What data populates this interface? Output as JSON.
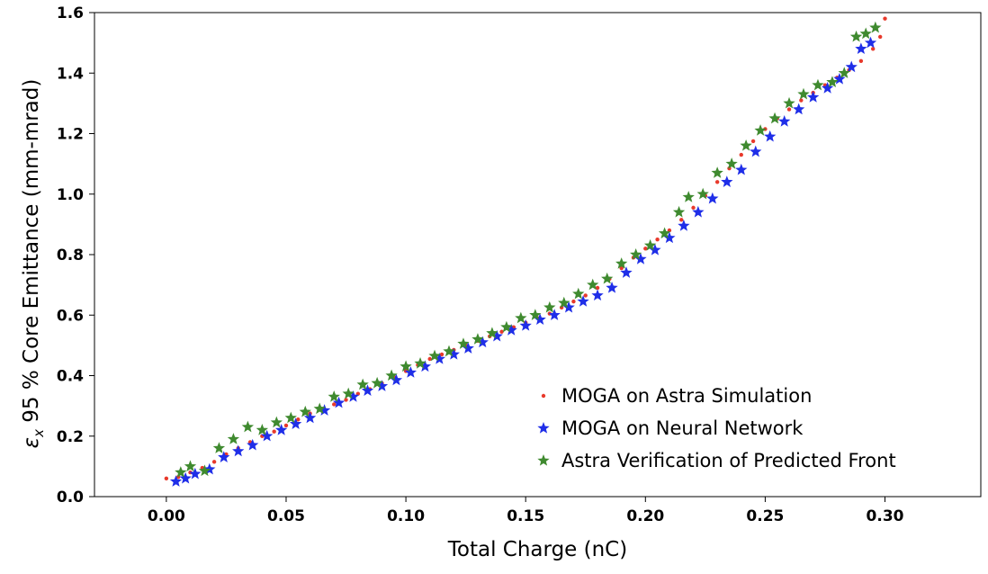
{
  "chart_data": {
    "type": "scatter",
    "title": "",
    "xlabel": "Total Charge (nC)",
    "ylabel_symbol": "ε",
    "ylabel_subscript": "x",
    "ylabel_rest": " 95 % Core Emittance (mm-mrad)",
    "xlim": [
      -0.03,
      0.34
    ],
    "ylim": [
      0.0,
      1.6
    ],
    "x_ticks": [
      0.0,
      0.05,
      0.1,
      0.15,
      0.2,
      0.25,
      0.3
    ],
    "x_tick_labels": [
      "0.00",
      "0.05",
      "0.10",
      "0.15",
      "0.20",
      "0.25",
      "0.30"
    ],
    "y_ticks": [
      0.0,
      0.2,
      0.4,
      0.6,
      0.8,
      1.0,
      1.2,
      1.4,
      1.6
    ],
    "y_tick_labels": [
      "0.0",
      "0.2",
      "0.4",
      "0.6",
      "0.8",
      "1.0",
      "1.2",
      "1.4",
      "1.6"
    ],
    "grid": false,
    "legend_position": "lower-right",
    "series": [
      {
        "name": "MOGA on Astra Simulation",
        "marker": "dot",
        "color": "#e8392b",
        "points": [
          [
            0.0,
            0.06
          ],
          [
            0.005,
            0.065
          ],
          [
            0.01,
            0.08
          ],
          [
            0.015,
            0.095
          ],
          [
            0.02,
            0.115
          ],
          [
            0.025,
            0.14
          ],
          [
            0.03,
            0.16
          ],
          [
            0.035,
            0.18
          ],
          [
            0.04,
            0.2
          ],
          [
            0.045,
            0.215
          ],
          [
            0.05,
            0.235
          ],
          [
            0.055,
            0.255
          ],
          [
            0.06,
            0.275
          ],
          [
            0.065,
            0.29
          ],
          [
            0.07,
            0.305
          ],
          [
            0.075,
            0.32
          ],
          [
            0.08,
            0.34
          ],
          [
            0.085,
            0.355
          ],
          [
            0.09,
            0.375
          ],
          [
            0.095,
            0.395
          ],
          [
            0.1,
            0.415
          ],
          [
            0.105,
            0.435
          ],
          [
            0.11,
            0.455
          ],
          [
            0.115,
            0.47
          ],
          [
            0.12,
            0.485
          ],
          [
            0.125,
            0.5
          ],
          [
            0.13,
            0.515
          ],
          [
            0.135,
            0.53
          ],
          [
            0.14,
            0.545
          ],
          [
            0.145,
            0.56
          ],
          [
            0.15,
            0.575
          ],
          [
            0.155,
            0.59
          ],
          [
            0.16,
            0.605
          ],
          [
            0.165,
            0.625
          ],
          [
            0.17,
            0.645
          ],
          [
            0.175,
            0.665
          ],
          [
            0.18,
            0.69
          ],
          [
            0.185,
            0.72
          ],
          [
            0.19,
            0.755
          ],
          [
            0.195,
            0.79
          ],
          [
            0.2,
            0.82
          ],
          [
            0.205,
            0.85
          ],
          [
            0.21,
            0.88
          ],
          [
            0.215,
            0.915
          ],
          [
            0.22,
            0.955
          ],
          [
            0.225,
            0.995
          ],
          [
            0.23,
            1.04
          ],
          [
            0.235,
            1.085
          ],
          [
            0.24,
            1.13
          ],
          [
            0.245,
            1.175
          ],
          [
            0.25,
            1.215
          ],
          [
            0.255,
            1.25
          ],
          [
            0.26,
            1.28
          ],
          [
            0.265,
            1.31
          ],
          [
            0.27,
            1.335
          ],
          [
            0.275,
            1.36
          ],
          [
            0.28,
            1.385
          ],
          [
            0.285,
            1.41
          ],
          [
            0.29,
            1.44
          ],
          [
            0.295,
            1.48
          ],
          [
            0.298,
            1.52
          ],
          [
            0.3,
            1.58
          ]
        ]
      },
      {
        "name": "MOGA on Neural Network",
        "marker": "star",
        "color": "#1f2ee8",
        "points": [
          [
            0.004,
            0.05
          ],
          [
            0.008,
            0.06
          ],
          [
            0.012,
            0.075
          ],
          [
            0.018,
            0.09
          ],
          [
            0.024,
            0.13
          ],
          [
            0.03,
            0.15
          ],
          [
            0.036,
            0.17
          ],
          [
            0.042,
            0.2
          ],
          [
            0.048,
            0.22
          ],
          [
            0.054,
            0.24
          ],
          [
            0.06,
            0.26
          ],
          [
            0.066,
            0.285
          ],
          [
            0.072,
            0.31
          ],
          [
            0.078,
            0.33
          ],
          [
            0.084,
            0.35
          ],
          [
            0.09,
            0.365
          ],
          [
            0.096,
            0.385
          ],
          [
            0.102,
            0.41
          ],
          [
            0.108,
            0.43
          ],
          [
            0.114,
            0.455
          ],
          [
            0.12,
            0.47
          ],
          [
            0.126,
            0.49
          ],
          [
            0.132,
            0.51
          ],
          [
            0.138,
            0.53
          ],
          [
            0.144,
            0.55
          ],
          [
            0.15,
            0.565
          ],
          [
            0.156,
            0.585
          ],
          [
            0.162,
            0.6
          ],
          [
            0.168,
            0.625
          ],
          [
            0.174,
            0.645
          ],
          [
            0.18,
            0.665
          ],
          [
            0.186,
            0.69
          ],
          [
            0.192,
            0.74
          ],
          [
            0.198,
            0.785
          ],
          [
            0.204,
            0.815
          ],
          [
            0.21,
            0.855
          ],
          [
            0.216,
            0.895
          ],
          [
            0.222,
            0.94
          ],
          [
            0.228,
            0.985
          ],
          [
            0.234,
            1.04
          ],
          [
            0.24,
            1.08
          ],
          [
            0.246,
            1.14
          ],
          [
            0.252,
            1.19
          ],
          [
            0.258,
            1.24
          ],
          [
            0.264,
            1.28
          ],
          [
            0.27,
            1.32
          ],
          [
            0.276,
            1.35
          ],
          [
            0.281,
            1.38
          ],
          [
            0.286,
            1.42
          ],
          [
            0.29,
            1.48
          ],
          [
            0.294,
            1.5
          ]
        ]
      },
      {
        "name": "Astra Verification of Predicted Front",
        "marker": "star",
        "color": "#3f8a2f",
        "points": [
          [
            0.006,
            0.08
          ],
          [
            0.01,
            0.1
          ],
          [
            0.016,
            0.085
          ],
          [
            0.022,
            0.16
          ],
          [
            0.028,
            0.19
          ],
          [
            0.034,
            0.23
          ],
          [
            0.04,
            0.22
          ],
          [
            0.046,
            0.245
          ],
          [
            0.052,
            0.26
          ],
          [
            0.058,
            0.28
          ],
          [
            0.064,
            0.29
          ],
          [
            0.07,
            0.33
          ],
          [
            0.076,
            0.34
          ],
          [
            0.082,
            0.37
          ],
          [
            0.088,
            0.375
          ],
          [
            0.094,
            0.4
          ],
          [
            0.1,
            0.43
          ],
          [
            0.106,
            0.44
          ],
          [
            0.112,
            0.465
          ],
          [
            0.118,
            0.48
          ],
          [
            0.124,
            0.505
          ],
          [
            0.13,
            0.52
          ],
          [
            0.136,
            0.54
          ],
          [
            0.142,
            0.56
          ],
          [
            0.148,
            0.59
          ],
          [
            0.154,
            0.6
          ],
          [
            0.16,
            0.625
          ],
          [
            0.166,
            0.64
          ],
          [
            0.172,
            0.67
          ],
          [
            0.178,
            0.7
          ],
          [
            0.184,
            0.72
          ],
          [
            0.19,
            0.77
          ],
          [
            0.196,
            0.8
          ],
          [
            0.202,
            0.83
          ],
          [
            0.208,
            0.87
          ],
          [
            0.214,
            0.94
          ],
          [
            0.218,
            0.99
          ],
          [
            0.224,
            1.0
          ],
          [
            0.23,
            1.07
          ],
          [
            0.236,
            1.1
          ],
          [
            0.242,
            1.16
          ],
          [
            0.248,
            1.21
          ],
          [
            0.254,
            1.25
          ],
          [
            0.26,
            1.3
          ],
          [
            0.266,
            1.33
          ],
          [
            0.272,
            1.36
          ],
          [
            0.278,
            1.37
          ],
          [
            0.283,
            1.4
          ],
          [
            0.288,
            1.52
          ],
          [
            0.292,
            1.53
          ],
          [
            0.296,
            1.55
          ]
        ]
      }
    ]
  }
}
